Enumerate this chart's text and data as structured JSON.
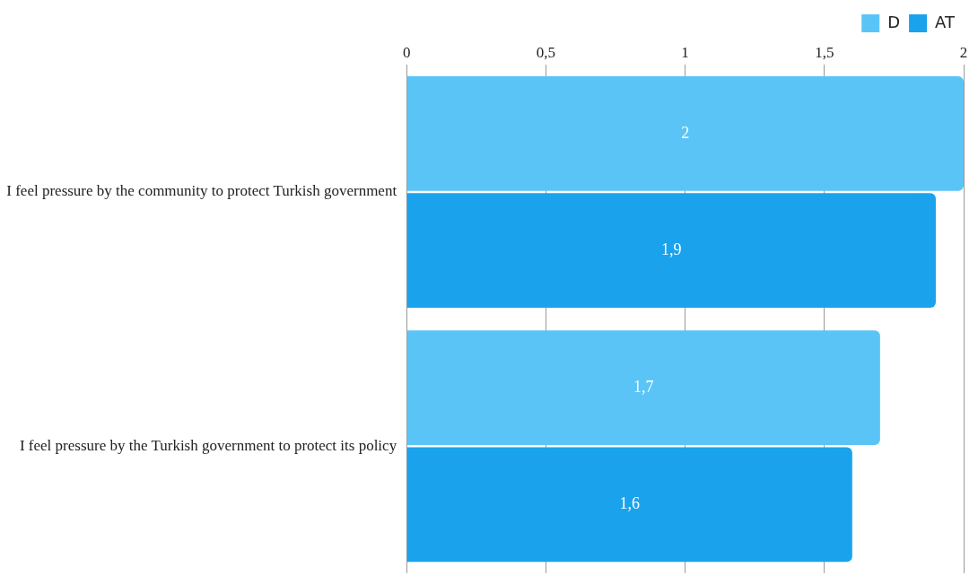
{
  "chart_data": {
    "type": "bar",
    "orientation": "horizontal",
    "categories": [
      "I feel pressure by the community to protect Turkish government",
      "I feel pressure by the Turkish government to protect its policy"
    ],
    "series": [
      {
        "name": "D",
        "color": "#5bc4f7",
        "values": [
          2,
          1.7
        ],
        "value_labels": [
          "2",
          "1,7"
        ]
      },
      {
        "name": "AT",
        "color": "#1aa3ec",
        "values": [
          1.9,
          1.6
        ],
        "value_labels": [
          "1,9",
          "1,6"
        ]
      }
    ],
    "xlim": [
      0,
      2
    ],
    "xticks": [
      0,
      {
        "value": 0.5,
        "label": "0,5"
      },
      1,
      {
        "value": 1.5,
        "label": "1,5"
      },
      2
    ],
    "grid": "x",
    "legend": "top right"
  }
}
